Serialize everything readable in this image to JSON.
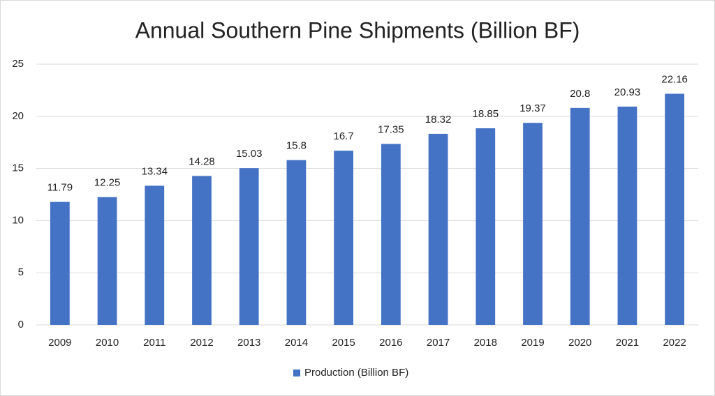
{
  "chart_data": {
    "type": "bar",
    "title": "Annual Southern Pine Shipments (Billion BF)",
    "categories": [
      "2009",
      "2010",
      "2011",
      "2012",
      "2013",
      "2014",
      "2015",
      "2016",
      "2017",
      "2018",
      "2019",
      "2020",
      "2021",
      "2022"
    ],
    "series": [
      {
        "name": "Production (Billion BF)",
        "color": "#4472c4",
        "values": [
          11.79,
          12.25,
          13.34,
          14.28,
          15.03,
          15.8,
          16.7,
          17.35,
          18.32,
          18.85,
          19.37,
          20.8,
          20.93,
          22.16
        ]
      }
    ],
    "ylim": [
      0,
      25
    ],
    "yticks": [
      0,
      5,
      10,
      15,
      20,
      25
    ],
    "grid": true,
    "legend": "bottom"
  }
}
